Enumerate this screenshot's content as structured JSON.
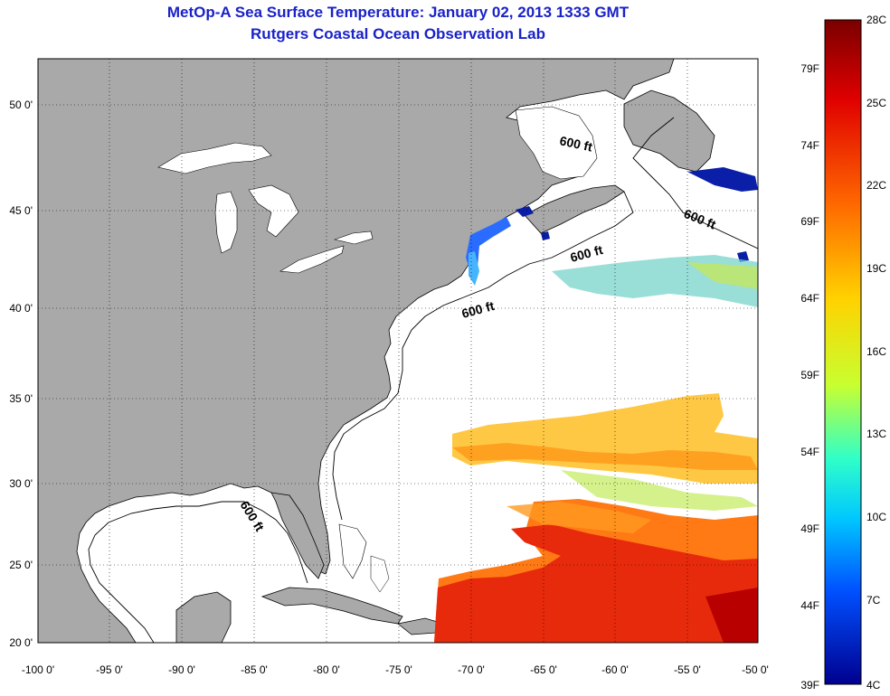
{
  "title_line1": "MetOp-A Sea Surface Temperature:  January 02, 2013 1333 GMT",
  "title_line2": "Rutgers Coastal Ocean Observation Lab",
  "longitude_ticks": [
    "-100 0'",
    "-95 0'",
    "-90 0'",
    "-85 0'",
    "-80 0'",
    "-75 0'",
    "-70 0'",
    "-65 0'",
    "-60 0'",
    "-55 0'",
    "-50 0'"
  ],
  "latitude_ticks": [
    "50 0'",
    "45 0'",
    "40 0'",
    "35 0'",
    "30 0'",
    "25 0'",
    "20 0'"
  ],
  "contour_labels": [
    "600 ft",
    "600 ft",
    "600 ft",
    "600 ft",
    "600 ft"
  ],
  "colorbar": {
    "celsius": [
      "28C",
      "25C",
      "22C",
      "19C",
      "16C",
      "13C",
      "10C",
      "7C",
      "4C"
    ],
    "fahrenheit": [
      "79F",
      "74F",
      "69F",
      "64F",
      "59F",
      "54F",
      "49F",
      "44F",
      "39F"
    ]
  },
  "colors": {
    "land": "#a9a9a9",
    "ocean": "#ffffff",
    "title": "#1a22c8",
    "gradient": [
      "#7a0000",
      "#e00000",
      "#ff6a00",
      "#ffd200",
      "#c8ff30",
      "#30ffc8",
      "#00c8ff",
      "#0050ff",
      "#00008f"
    ]
  }
}
